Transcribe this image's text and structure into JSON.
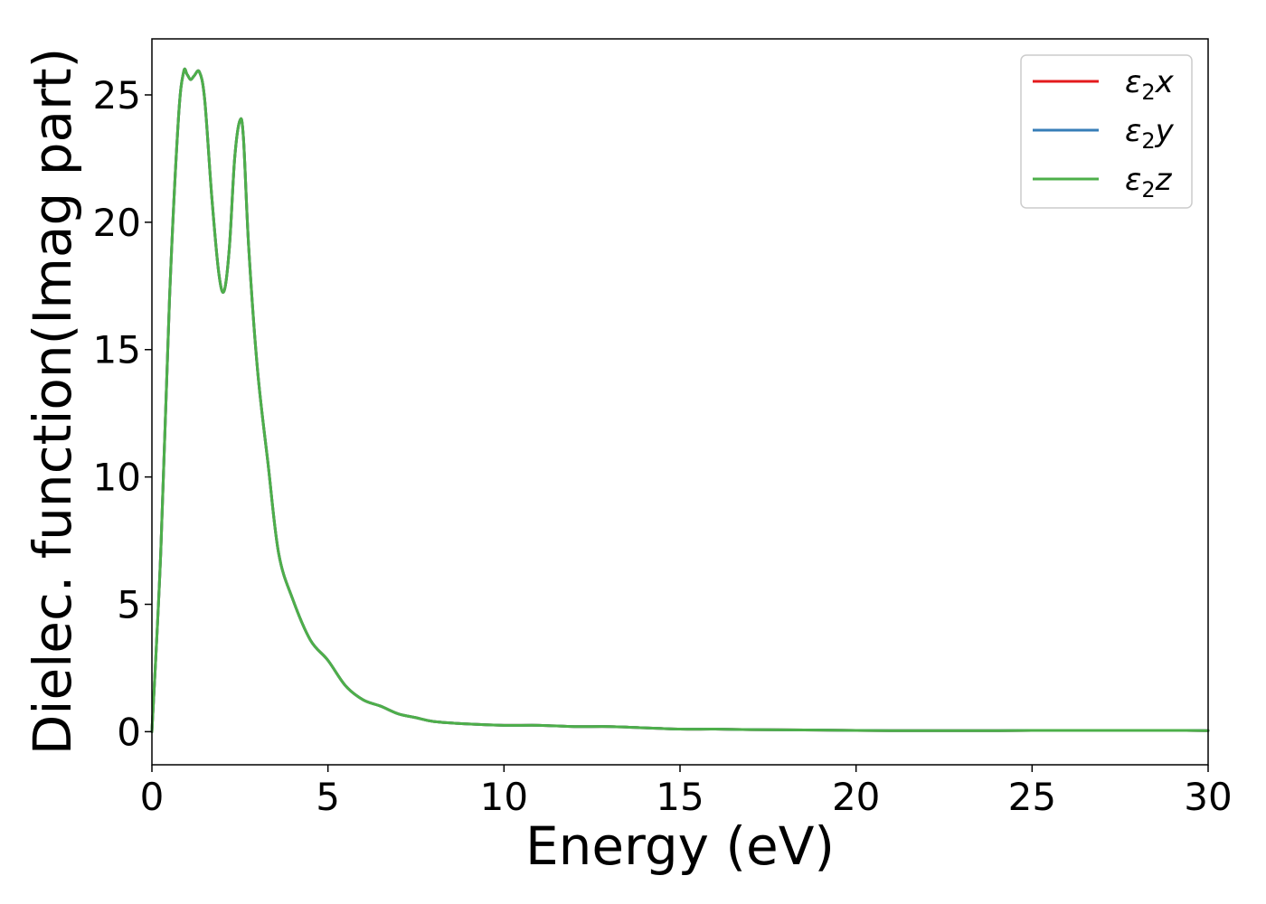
{
  "chart_data": {
    "type": "line",
    "title": "",
    "xlabel": "Energy (eV)",
    "ylabel": "Dielec. function(Imag part)",
    "xlim": [
      0,
      30
    ],
    "ylim": [
      -1.3,
      27.2
    ],
    "xticks": [
      0,
      5,
      10,
      15,
      20,
      25,
      30
    ],
    "yticks": [
      0,
      5,
      10,
      15,
      20,
      25
    ],
    "grid": false,
    "legend_position": "top-right",
    "x": [
      0,
      0.25,
      0.5,
      0.75,
      0.9,
      1.0,
      1.1,
      1.2,
      1.35,
      1.5,
      1.7,
      1.9,
      2.05,
      2.2,
      2.35,
      2.5,
      2.6,
      2.75,
      3.0,
      3.3,
      3.6,
      4.0,
      4.5,
      5.0,
      5.5,
      6.0,
      6.5,
      7.0,
      7.5,
      8.0,
      9.0,
      10.0,
      11.0,
      12.0,
      13.0,
      14.0,
      15.0,
      16.0,
      17.0,
      18.0,
      19.0,
      20.0,
      21.0,
      22.0,
      23.0,
      24.0,
      25.0,
      26.0,
      27.0,
      28.0,
      29.0,
      30.0
    ],
    "series": [
      {
        "name": "ε₂x",
        "color": "#e41a1c",
        "values": [
          0.0,
          7.0,
          17.0,
          24.0,
          25.9,
          25.8,
          25.6,
          25.75,
          25.9,
          24.8,
          21.0,
          18.0,
          17.3,
          19.0,
          22.5,
          24.0,
          23.3,
          19.0,
          14.2,
          10.5,
          7.0,
          5.2,
          3.6,
          2.8,
          1.8,
          1.25,
          1.0,
          0.7,
          0.55,
          0.4,
          0.3,
          0.25,
          0.25,
          0.2,
          0.2,
          0.15,
          0.1,
          0.1,
          0.08,
          0.07,
          0.06,
          0.05,
          0.04,
          0.04,
          0.04,
          0.04,
          0.05,
          0.05,
          0.05,
          0.05,
          0.05,
          0.04
        ]
      },
      {
        "name": "ε₂y",
        "color": "#377eb8",
        "values": [
          0.0,
          7.0,
          17.0,
          24.0,
          25.9,
          25.8,
          25.6,
          25.75,
          25.9,
          24.8,
          21.0,
          18.0,
          17.3,
          19.0,
          22.5,
          24.0,
          23.3,
          19.0,
          14.2,
          10.5,
          7.0,
          5.2,
          3.6,
          2.8,
          1.8,
          1.25,
          1.0,
          0.7,
          0.55,
          0.4,
          0.3,
          0.25,
          0.25,
          0.2,
          0.2,
          0.15,
          0.1,
          0.1,
          0.08,
          0.07,
          0.06,
          0.05,
          0.04,
          0.04,
          0.04,
          0.04,
          0.05,
          0.05,
          0.05,
          0.05,
          0.05,
          0.04
        ]
      },
      {
        "name": "ε₂z",
        "color": "#4daf4a",
        "values": [
          0.0,
          7.0,
          17.0,
          24.0,
          25.9,
          25.8,
          25.6,
          25.75,
          25.9,
          24.8,
          21.0,
          18.0,
          17.3,
          19.0,
          22.5,
          24.0,
          23.3,
          19.0,
          14.2,
          10.5,
          7.0,
          5.2,
          3.6,
          2.8,
          1.8,
          1.25,
          1.0,
          0.7,
          0.55,
          0.4,
          0.3,
          0.25,
          0.25,
          0.2,
          0.2,
          0.15,
          0.1,
          0.1,
          0.08,
          0.07,
          0.06,
          0.05,
          0.04,
          0.04,
          0.04,
          0.04,
          0.05,
          0.05,
          0.05,
          0.05,
          0.05,
          0.04
        ]
      }
    ],
    "legend": [
      {
        "base": "ε",
        "sub": "2",
        "suffix": "x"
      },
      {
        "base": "ε",
        "sub": "2",
        "suffix": "y"
      },
      {
        "base": "ε",
        "sub": "2",
        "suffix": "z"
      }
    ]
  }
}
